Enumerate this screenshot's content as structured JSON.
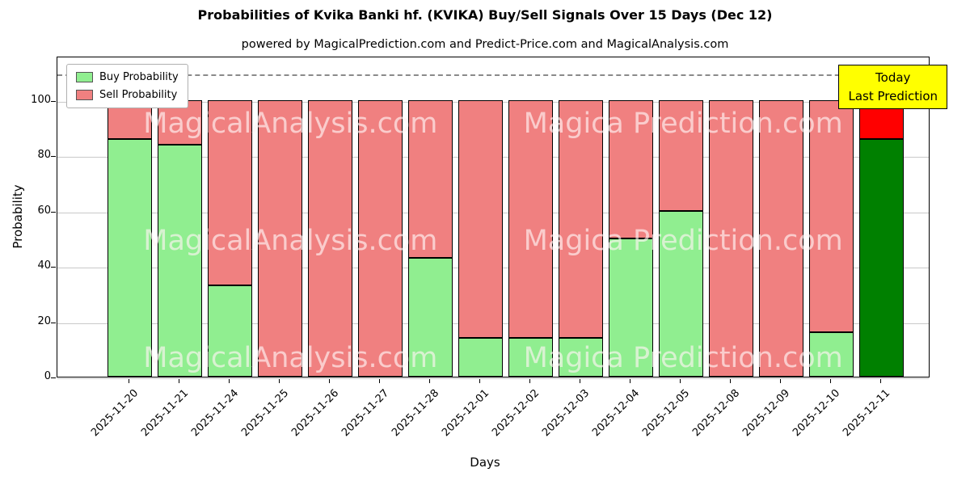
{
  "chart": {
    "title": "Probabilities of Kvika Banki hf. (KVIKA) Buy/Sell Signals Over 15 Days (Dec 12)",
    "subtitle": "powered by MagicalPrediction.com and Predict-Price.com and MagicalAnalysis.com",
    "xlabel": "Days",
    "ylabel": "Probability",
    "yticks": [
      0,
      20,
      40,
      60,
      80,
      100
    ],
    "ymax": 116,
    "dashed_line_y": 110,
    "legend": [
      {
        "label": "Buy Probability",
        "color": "#90EE90"
      },
      {
        "label": "Sell Probability",
        "color": "#F08080"
      }
    ],
    "annotation": {
      "lines": [
        "Today",
        "Last Prediction"
      ],
      "bg": "#FFFF00"
    },
    "watermarks": [
      "MagicalAnalysis.com",
      "Magica Prediction.com"
    ]
  },
  "chart_data": {
    "type": "bar",
    "stacked": true,
    "title": "Probabilities of Kvika Banki hf. (KVIKA) Buy/Sell Signals Over 15 Days (Dec 12)",
    "xlabel": "Days",
    "ylabel": "Probability",
    "ylim": [
      0,
      116
    ],
    "grid": true,
    "legend_position": "upper left",
    "categories": [
      "2025-11-20",
      "2025-11-21",
      "2025-11-24",
      "2025-11-25",
      "2025-11-26",
      "2025-11-27",
      "2025-11-28",
      "2025-12-01",
      "2025-12-02",
      "2025-12-03",
      "2025-12-04",
      "2025-12-05",
      "2025-12-08",
      "2025-12-09",
      "2025-12-10",
      "2025-12-11"
    ],
    "series": [
      {
        "name": "Buy Probability",
        "values": [
          86,
          84,
          33,
          0,
          0,
          0,
          43,
          14,
          14,
          14,
          50,
          60,
          0,
          0,
          16,
          86
        ]
      },
      {
        "name": "Sell Probability",
        "values": [
          14,
          16,
          67,
          100,
          100,
          100,
          57,
          86,
          86,
          86,
          50,
          40,
          100,
          100,
          84,
          14
        ]
      }
    ],
    "colors": {
      "buy": "#90EE90",
      "sell": "#F08080",
      "today_buy": "#008000",
      "today_sell": "#FF0000"
    },
    "today_index": 15,
    "annotation_dashed_line": 110
  }
}
